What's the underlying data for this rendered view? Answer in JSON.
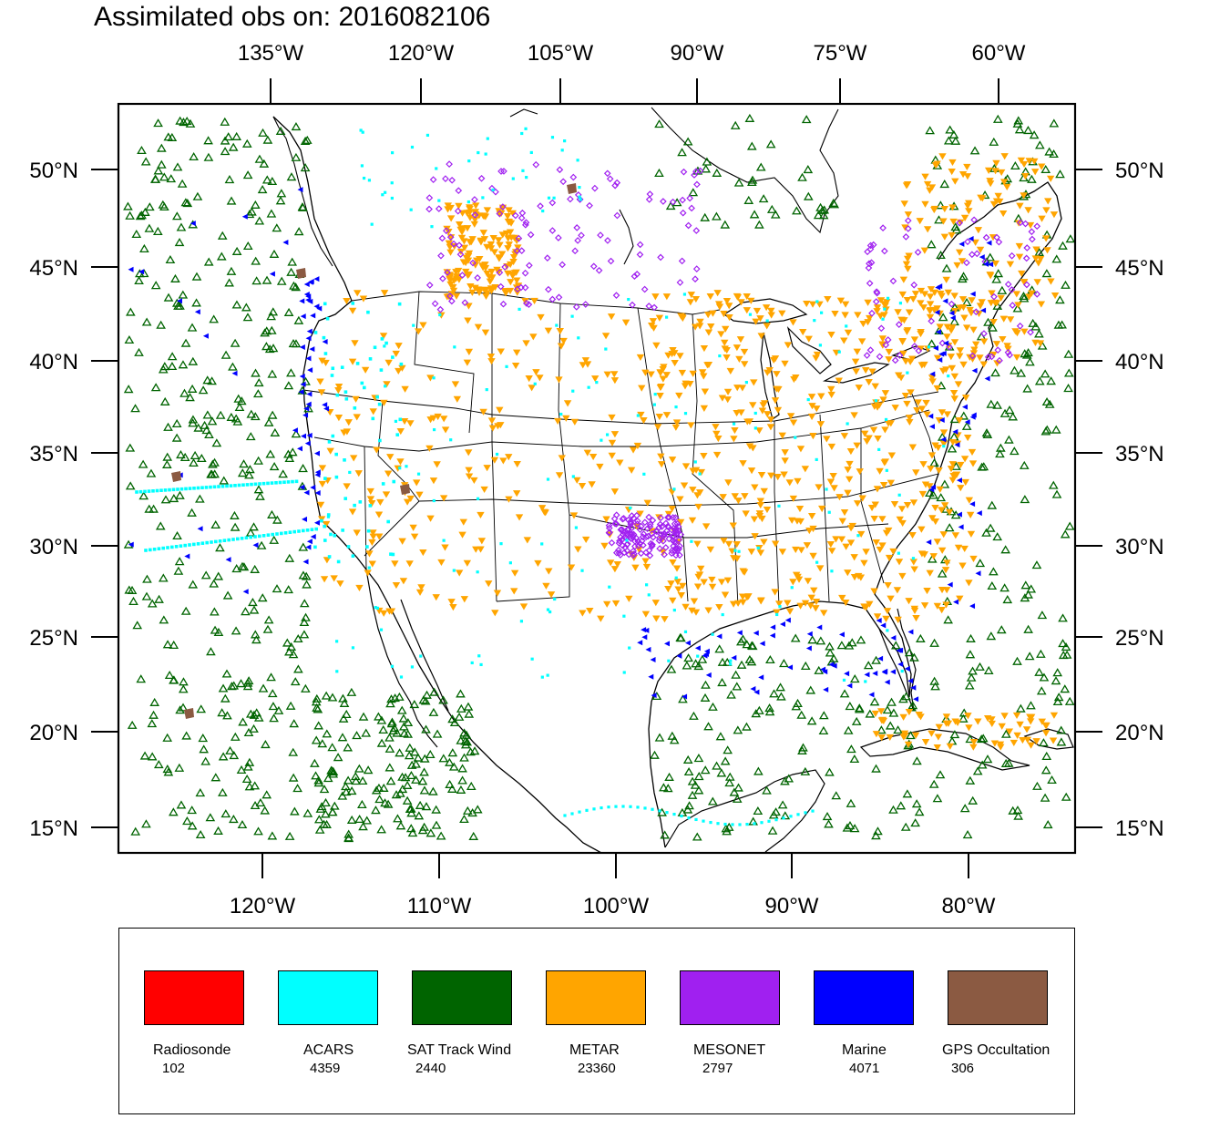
{
  "title": "Assimilated obs on: 2016082106",
  "axes": {
    "top_lon_labels": [
      "135°W",
      "120°W",
      "105°W",
      "90°W",
      "75°W",
      "60°W"
    ],
    "bottom_lon_labels": [
      "120°W",
      "110°W",
      "100°W",
      "90°W",
      "80°W"
    ],
    "lat_labels": [
      "50°N",
      "45°N",
      "40°N",
      "35°N",
      "30°N",
      "25°N",
      "20°N",
      "15°N"
    ]
  },
  "legend": [
    {
      "name": "Radiosonde",
      "count": "102",
      "color": "#ff0000"
    },
    {
      "name": "ACARS",
      "count": "4359",
      "color": "#00ffff"
    },
    {
      "name": "SAT Track Wind",
      "count": "2440",
      "color": "#006400"
    },
    {
      "name": "METAR",
      "count": "23360",
      "color": "#ffa500"
    },
    {
      "name": "MESONET",
      "count": "2797",
      "color": "#a020f0"
    },
    {
      "name": "Marine",
      "count": "4071",
      "color": "#0000ff"
    },
    {
      "name": "GPS Occultation",
      "count": "306",
      "color": "#8b5a42"
    }
  ]
}
